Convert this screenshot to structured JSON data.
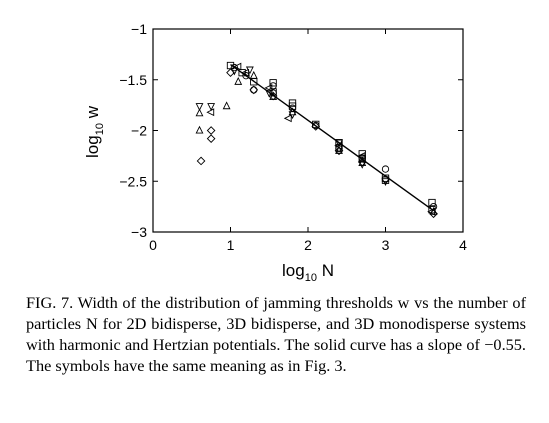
{
  "chart_data": {
    "type": "scatter",
    "xlabel": "log₁₀ N",
    "ylabel": "log₁₀ w",
    "xlim": [
      0,
      4
    ],
    "ylim": [
      -3,
      -1
    ],
    "x_ticks": [
      0,
      1,
      2,
      3,
      4
    ],
    "y_ticks": [
      -3,
      -2.5,
      -2,
      -1.5,
      -1
    ],
    "x_tick_labels": [
      "0",
      "1",
      "2",
      "3",
      "4"
    ],
    "y_tick_labels": [
      "−3",
      "−2.5",
      "−2",
      "−1.5",
      "−1"
    ],
    "grid": false,
    "fit_line": {
      "slope": -0.55,
      "x": [
        1.0,
        3.62
      ],
      "y": [
        -1.35,
        -2.79
      ]
    },
    "series": [
      {
        "marker": "square",
        "points": [
          [
            1.0,
            -1.36
          ],
          [
            1.15,
            -1.43
          ],
          [
            1.3,
            -1.52
          ],
          [
            1.55,
            -1.53
          ],
          [
            1.55,
            -1.62
          ],
          [
            1.8,
            -1.73
          ],
          [
            1.8,
            -1.76
          ],
          [
            2.1,
            -1.94
          ],
          [
            2.4,
            -2.12
          ],
          [
            2.4,
            -2.17
          ],
          [
            2.7,
            -2.23
          ],
          [
            2.7,
            -2.28
          ],
          [
            3.0,
            -2.47
          ],
          [
            3.0,
            -2.49
          ],
          [
            3.6,
            -2.71
          ],
          [
            3.6,
            -2.78
          ]
        ]
      },
      {
        "marker": "circle",
        "points": [
          [
            1.05,
            -1.38
          ],
          [
            1.2,
            -1.46
          ],
          [
            1.3,
            -1.6
          ],
          [
            1.55,
            -1.56
          ],
          [
            1.55,
            -1.63
          ],
          [
            1.8,
            -1.78
          ],
          [
            2.1,
            -1.95
          ],
          [
            2.4,
            -2.18
          ],
          [
            2.7,
            -2.27
          ],
          [
            3.0,
            -2.38
          ],
          [
            3.0,
            -2.48
          ],
          [
            3.62,
            -2.75
          ]
        ]
      },
      {
        "marker": "triangle-up",
        "points": [
          [
            0.6,
            -2.0
          ],
          [
            0.6,
            -1.83
          ],
          [
            0.95,
            -1.76
          ],
          [
            1.1,
            -1.52
          ],
          [
            1.3,
            -1.46
          ],
          [
            1.55,
            -1.67
          ],
          [
            1.8,
            -1.82
          ],
          [
            2.4,
            -2.2
          ],
          [
            2.7,
            -2.32
          ],
          [
            3.62,
            -2.8
          ]
        ]
      },
      {
        "marker": "triangle-down",
        "points": [
          [
            0.6,
            -1.76
          ],
          [
            0.75,
            -1.76
          ],
          [
            1.05,
            -1.41
          ],
          [
            1.25,
            -1.4
          ],
          [
            1.5,
            -1.63
          ],
          [
            1.8,
            -1.84
          ],
          [
            2.4,
            -2.12
          ],
          [
            2.7,
            -2.33
          ],
          [
            3.0,
            -2.5
          ]
        ]
      },
      {
        "marker": "triangle-left",
        "points": [
          [
            0.75,
            -1.82
          ],
          [
            1.1,
            -1.37
          ],
          [
            1.2,
            -1.43
          ],
          [
            1.5,
            -1.58
          ],
          [
            1.75,
            -1.88
          ],
          [
            2.4,
            -2.15
          ],
          [
            2.7,
            -2.25
          ],
          [
            3.6,
            -2.8
          ]
        ]
      },
      {
        "marker": "diamond",
        "points": [
          [
            0.62,
            -2.3
          ],
          [
            0.75,
            -2.08
          ],
          [
            0.75,
            -2.0
          ],
          [
            1.0,
            -1.43
          ],
          [
            1.3,
            -1.6
          ],
          [
            1.55,
            -1.66
          ],
          [
            2.1,
            -1.96
          ],
          [
            2.4,
            -2.2
          ],
          [
            2.7,
            -2.31
          ],
          [
            3.62,
            -2.82
          ]
        ]
      }
    ]
  },
  "caption": "FIG. 7. Width of the distribution of jamming thresholds w vs the number of particles N for 2D bidisperse, 3D bidisperse, and 3D monodisperse systems with harmonic and Hertzian potentials. The solid curve has a slope of −0.55. The symbols have the same meaning as in Fig. 3."
}
